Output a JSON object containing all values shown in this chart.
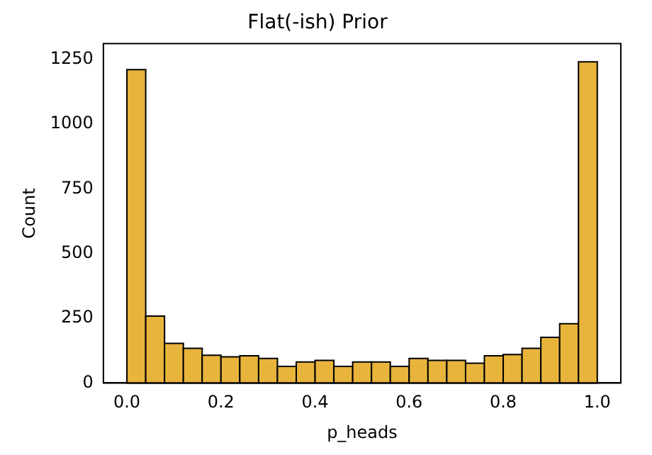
{
  "chart_data": {
    "type": "histogram",
    "title": "Flat(-ish) Prior",
    "xlabel": "p_heads",
    "ylabel": "Count",
    "bins": [
      0,
      0.04,
      0.08,
      0.12,
      0.16,
      0.2,
      0.24,
      0.28,
      0.32,
      0.36,
      0.4,
      0.44,
      0.48,
      0.52,
      0.56,
      0.6,
      0.64,
      0.68,
      0.72,
      0.76,
      0.8,
      0.84,
      0.88,
      0.92,
      0.96,
      1
    ],
    "values": [
      1210,
      258,
      153,
      134,
      107,
      101,
      105,
      95,
      64,
      81,
      87,
      64,
      81,
      81,
      64,
      95,
      87,
      87,
      76,
      105,
      110,
      134,
      176,
      229,
      1240
    ],
    "color": "#e8b43c",
    "xlim": [
      -0.05,
      1.05
    ],
    "xticks": [
      {
        "value": 0,
        "label": "0.0"
      },
      {
        "value": 0.2,
        "label": "0.2"
      },
      {
        "value": 0.4,
        "label": "0.4"
      },
      {
        "value": 0.6,
        "label": "0.6"
      },
      {
        "value": 0.8,
        "label": "0.8"
      },
      {
        "value": 1,
        "label": "1.0"
      }
    ],
    "ylim": [
      0,
      1310
    ],
    "yticks": [
      0,
      250,
      500,
      750,
      1000,
      1250
    ],
    "grid": false,
    "legend": false
  }
}
